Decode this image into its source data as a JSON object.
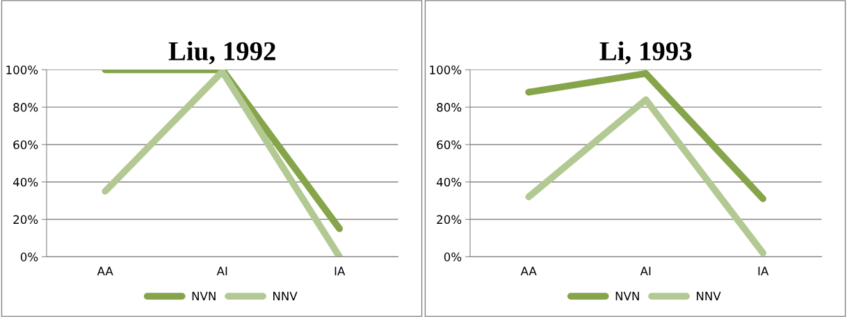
{
  "chart_data": [
    {
      "type": "line",
      "title": "Liu, 1992",
      "categories": [
        "AA",
        "AI",
        "IA"
      ],
      "ylim": [
        0,
        1
      ],
      "yticks": [
        {
          "value": 0,
          "label": "0%"
        },
        {
          "value": 0.2,
          "label": "20%"
        },
        {
          "value": 0.4,
          "label": "40%"
        },
        {
          "value": 0.6,
          "label": "60%"
        },
        {
          "value": 0.8,
          "label": "80%"
        },
        {
          "value": 1,
          "label": "100%"
        }
      ],
      "grid": "y",
      "legend": "bottom",
      "marker": "none",
      "line_style": "solid",
      "series": [
        {
          "name": "NVN",
          "color": "#86a44a",
          "values": [
            1.0,
            1.0,
            0.15
          ]
        },
        {
          "name": "NNV",
          "color": "#b3c993",
          "values": [
            0.35,
            0.99,
            0.0
          ]
        }
      ]
    },
    {
      "type": "line",
      "title": "Li, 1993",
      "categories": [
        "AA",
        "AI",
        "IA"
      ],
      "ylim": [
        0,
        1
      ],
      "yticks": [
        {
          "value": 0,
          "label": "0%"
        },
        {
          "value": 0.2,
          "label": "20%"
        },
        {
          "value": 0.4,
          "label": "40%"
        },
        {
          "value": 0.6,
          "label": "60%"
        },
        {
          "value": 0.8,
          "label": "80%"
        },
        {
          "value": 1,
          "label": "100%"
        }
      ],
      "grid": "y",
      "legend": "bottom",
      "marker": "none",
      "line_style": "solid",
      "series": [
        {
          "name": "NVN",
          "color": "#86a44a",
          "values": [
            0.88,
            0.98,
            0.31
          ]
        },
        {
          "name": "NNV",
          "color": "#b3c993",
          "values": [
            0.32,
            0.84,
            0.02
          ]
        }
      ]
    }
  ]
}
